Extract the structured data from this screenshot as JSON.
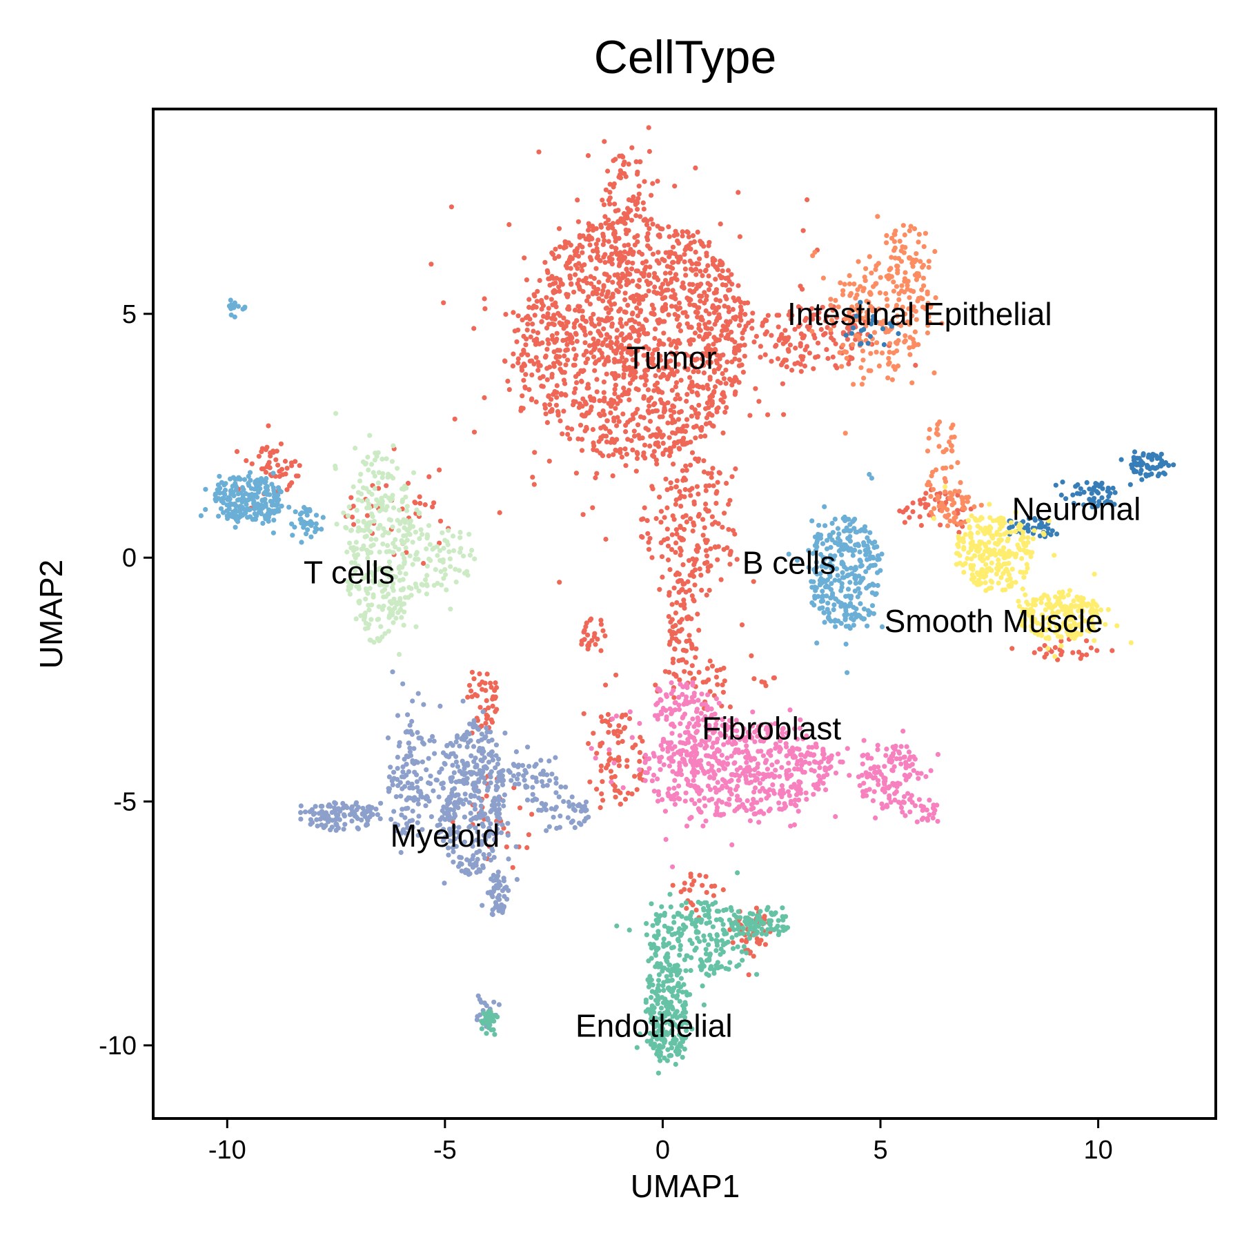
{
  "chart_data": {
    "type": "scatter",
    "title": "CellType",
    "xlabel": "UMAP1",
    "ylabel": "UMAP2",
    "xlim": [
      -11.7,
      12.7
    ],
    "ylim": [
      -11.5,
      9.2
    ],
    "xticks": [
      -10,
      -5,
      0,
      5,
      10
    ],
    "yticks": [
      5,
      0,
      -5,
      -10
    ],
    "xtick_labels": [
      "-10",
      "-5",
      "0",
      "5",
      "10"
    ],
    "ytick_labels": [
      "5",
      "0",
      "-5",
      "-10"
    ],
    "grid": false,
    "legend": "none",
    "colors": {
      "Tumor": "#ef6756",
      "Intestinal Epithelial": "#fc8d62",
      "Neuronal": "#377eb8",
      "B cells": "#6baed6",
      "Smooth Muscle": "#ffed6f",
      "T cells": "#ccebc5",
      "Myeloid": "#8da0cb",
      "Fibroblast": "#f781bf",
      "Endothelial": "#66c2a5"
    },
    "series": [
      {
        "name": "Tumor",
        "label_pos": [
          0.2,
          4.1
        ],
        "blobs": [
          {
            "cx": -0.7,
            "cy": 4.5,
            "rx": 2.7,
            "ry": 2.5,
            "n": 1500
          },
          {
            "cx": -0.8,
            "cy": 7.4,
            "rx": 0.6,
            "ry": 0.9,
            "n": 70
          },
          {
            "cx": 0.6,
            "cy": 0.6,
            "rx": 1.1,
            "ry": 1.5,
            "n": 180
          },
          {
            "cx": 0.5,
            "cy": -1.6,
            "rx": 0.35,
            "ry": 1.1,
            "n": 70
          },
          {
            "cx": 3.5,
            "cy": 4.5,
            "rx": 1.6,
            "ry": 0.7,
            "n": 140
          },
          {
            "cx": -8.9,
            "cy": 1.8,
            "rx": 0.55,
            "ry": 0.6,
            "n": 50
          },
          {
            "cx": -6.0,
            "cy": 0.8,
            "rx": 1.3,
            "ry": 1.0,
            "n": 40
          },
          {
            "cx": -4.1,
            "cy": -2.9,
            "rx": 0.35,
            "ry": 0.7,
            "n": 45
          },
          {
            "cx": -1.6,
            "cy": -1.6,
            "rx": 0.3,
            "ry": 0.4,
            "n": 25
          },
          {
            "cx": -1.1,
            "cy": -4.1,
            "rx": 0.7,
            "ry": 1.0,
            "n": 80
          },
          {
            "cx": 2.0,
            "cy": -7.6,
            "rx": 0.45,
            "ry": 0.6,
            "n": 50
          },
          {
            "cx": 0.9,
            "cy": -6.9,
            "rx": 0.5,
            "ry": 0.5,
            "n": 25
          },
          {
            "cx": 6.3,
            "cy": 1.0,
            "rx": 0.9,
            "ry": 0.4,
            "n": 45
          },
          {
            "cx": 9.2,
            "cy": -1.9,
            "rx": 0.8,
            "ry": 0.2,
            "n": 25
          },
          {
            "cx": -3.8,
            "cy": -5.5,
            "rx": 0.8,
            "ry": 1.0,
            "n": 30
          },
          {
            "cx": 1.2,
            "cy": -2.6,
            "rx": 1.5,
            "ry": 0.5,
            "n": 40
          }
        ]
      },
      {
        "name": "Intestinal Epithelial",
        "label_pos": [
          5.9,
          5.0
        ],
        "blobs": [
          {
            "cx": 5.0,
            "cy": 5.0,
            "rx": 1.2,
            "ry": 1.2,
            "n": 200
          },
          {
            "cx": 5.6,
            "cy": 6.2,
            "rx": 0.6,
            "ry": 0.7,
            "n": 60
          },
          {
            "cx": 6.4,
            "cy": 2.0,
            "rx": 0.4,
            "ry": 0.9,
            "n": 40
          },
          {
            "cx": 6.6,
            "cy": 1.0,
            "rx": 0.6,
            "ry": 0.4,
            "n": 40
          }
        ]
      },
      {
        "name": "Neuronal",
        "label_pos": [
          9.5,
          1.0
        ],
        "blobs": [
          {
            "cx": 11.2,
            "cy": 1.9,
            "rx": 0.5,
            "ry": 0.25,
            "n": 60
          },
          {
            "cx": 9.9,
            "cy": 1.3,
            "rx": 0.6,
            "ry": 0.3,
            "n": 50
          },
          {
            "cx": 8.5,
            "cy": 0.6,
            "rx": 0.7,
            "ry": 0.25,
            "n": 40
          },
          {
            "cx": 4.8,
            "cy": 4.8,
            "rx": 0.7,
            "ry": 0.5,
            "n": 20
          }
        ]
      },
      {
        "name": "B cells",
        "label_pos": [
          2.9,
          -0.1
        ],
        "blobs": [
          {
            "cx": 4.2,
            "cy": -0.3,
            "rx": 0.8,
            "ry": 1.2,
            "n": 300
          },
          {
            "cx": -9.5,
            "cy": 1.2,
            "rx": 0.8,
            "ry": 0.5,
            "n": 220
          },
          {
            "cx": -8.2,
            "cy": 0.7,
            "rx": 0.4,
            "ry": 0.3,
            "n": 35
          },
          {
            "cx": -9.8,
            "cy": 5.1,
            "rx": 0.2,
            "ry": 0.15,
            "n": 15
          }
        ]
      },
      {
        "name": "Smooth Muscle",
        "label_pos": [
          7.6,
          -1.3
        ],
        "blobs": [
          {
            "cx": 7.6,
            "cy": 0.1,
            "rx": 0.9,
            "ry": 0.8,
            "n": 250
          },
          {
            "cx": 9.1,
            "cy": -1.2,
            "rx": 1.0,
            "ry": 0.5,
            "n": 200
          }
        ]
      },
      {
        "name": "T cells",
        "label_pos": [
          -7.2,
          -0.3
        ],
        "blobs": [
          {
            "cx": -6.5,
            "cy": 0.2,
            "rx": 0.8,
            "ry": 2.0,
            "n": 300
          },
          {
            "cx": -5.3,
            "cy": 0.0,
            "rx": 1.0,
            "ry": 0.7,
            "n": 90
          }
        ]
      },
      {
        "name": "Myeloid",
        "label_pos": [
          -5.0,
          -5.7
        ],
        "blobs": [
          {
            "cx": -4.4,
            "cy": -4.9,
            "rx": 0.8,
            "ry": 1.6,
            "n": 350
          },
          {
            "cx": -5.8,
            "cy": -4.6,
            "rx": 0.5,
            "ry": 1.2,
            "n": 120
          },
          {
            "cx": -7.3,
            "cy": -5.3,
            "rx": 1.0,
            "ry": 0.3,
            "n": 120
          },
          {
            "cx": -3.8,
            "cy": -6.9,
            "rx": 0.25,
            "ry": 0.5,
            "n": 50
          },
          {
            "cx": -3.0,
            "cy": -4.6,
            "rx": 0.8,
            "ry": 0.5,
            "n": 60
          },
          {
            "cx": -2.2,
            "cy": -5.2,
            "rx": 0.6,
            "ry": 0.4,
            "n": 40
          },
          {
            "cx": -4.0,
            "cy": -9.3,
            "rx": 0.3,
            "ry": 0.4,
            "n": 25
          }
        ]
      },
      {
        "name": "Fibroblast",
        "label_pos": [
          2.5,
          -3.5
        ],
        "blobs": [
          {
            "cx": 1.7,
            "cy": -4.3,
            "rx": 2.2,
            "ry": 1.0,
            "n": 600
          },
          {
            "cx": 5.2,
            "cy": -4.5,
            "rx": 0.8,
            "ry": 0.7,
            "n": 130
          },
          {
            "cx": 6.0,
            "cy": -5.2,
            "rx": 0.4,
            "ry": 0.3,
            "n": 25
          },
          {
            "cx": 0.5,
            "cy": -3.0,
            "rx": 0.8,
            "ry": 0.5,
            "n": 80
          }
        ]
      },
      {
        "name": "Endothelial",
        "label_pos": [
          -0.2,
          -9.6
        ],
        "blobs": [
          {
            "cx": 0.9,
            "cy": -7.8,
            "rx": 1.2,
            "ry": 0.8,
            "n": 220
          },
          {
            "cx": 0.1,
            "cy": -9.3,
            "rx": 0.5,
            "ry": 1.1,
            "n": 220
          },
          {
            "cx": 2.4,
            "cy": -7.5,
            "rx": 0.5,
            "ry": 0.3,
            "n": 60
          },
          {
            "cx": -4.0,
            "cy": -9.5,
            "rx": 0.2,
            "ry": 0.2,
            "n": 30
          }
        ]
      }
    ]
  }
}
